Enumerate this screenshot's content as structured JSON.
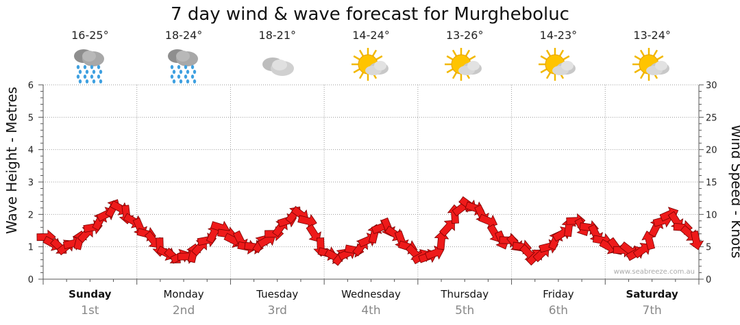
{
  "chart_data": {
    "type": "line",
    "title": "7 day wind & wave forecast for Murgheboluc",
    "ylabel_left": "Wave Height - Metres",
    "ylabel_right": "Wind Speed - Knots",
    "ylim_left": [
      0,
      6
    ],
    "ylim_right": [
      0,
      30
    ],
    "yticks_left": [
      "0",
      "1",
      "2",
      "3",
      "4",
      "5",
      "6"
    ],
    "yticks_right": [
      "0",
      "5",
      "10",
      "15",
      "20",
      "25",
      "30"
    ],
    "grid": true,
    "days": [
      {
        "day": "Sunday",
        "date": "1st",
        "temp": "16-25°",
        "icon": "rain-icon",
        "bold": true
      },
      {
        "day": "Monday",
        "date": "2nd",
        "temp": "18-24°",
        "icon": "rain-icon",
        "bold": false
      },
      {
        "day": "Tuesday",
        "date": "3rd",
        "temp": "18-21°",
        "icon": "cloud-icon",
        "bold": false
      },
      {
        "day": "Wednesday",
        "date": "4th",
        "temp": "14-24°",
        "icon": "partly-sunny-icon",
        "bold": false
      },
      {
        "day": "Thursday",
        "date": "5th",
        "temp": "13-26°",
        "icon": "partly-sunny-icon",
        "bold": false
      },
      {
        "day": "Friday",
        "date": "6th",
        "temp": "14-23°",
        "icon": "partly-sunny-icon",
        "bold": false
      },
      {
        "day": "Saturday",
        "date": "7th",
        "temp": "13-24°",
        "icon": "partly-sunny-icon",
        "bold": true
      }
    ],
    "wind_series": {
      "name": "Wind speed (knots)",
      "knots": [
        6.5,
        5.5,
        5,
        5,
        5.5,
        6,
        7,
        8,
        9,
        10,
        11,
        11,
        10,
        9,
        8,
        7,
        6,
        5,
        4,
        3.5,
        3.5,
        3.5,
        4,
        5,
        6,
        7,
        8,
        7,
        6,
        6,
        5,
        5,
        5.5,
        6,
        7,
        8,
        9,
        10,
        10,
        9,
        7,
        5,
        4,
        3.5,
        3.5,
        4,
        4.5,
        5,
        6,
        7,
        8,
        8,
        7,
        6,
        5,
        4,
        3.5,
        3.5,
        4,
        6,
        8,
        10,
        11,
        11.5,
        11,
        10,
        9,
        7,
        6,
        6,
        5.5,
        5,
        4,
        3.5,
        4,
        5,
        6,
        7,
        8,
        9,
        8,
        8,
        7,
        6,
        5,
        5,
        4.5,
        4.5,
        4,
        4.5,
        6,
        8,
        9,
        10,
        9,
        8,
        7,
        6
      ]
    },
    "wind_color": "#ee1a1a"
  },
  "credit": "www.seabreeze.com.au"
}
